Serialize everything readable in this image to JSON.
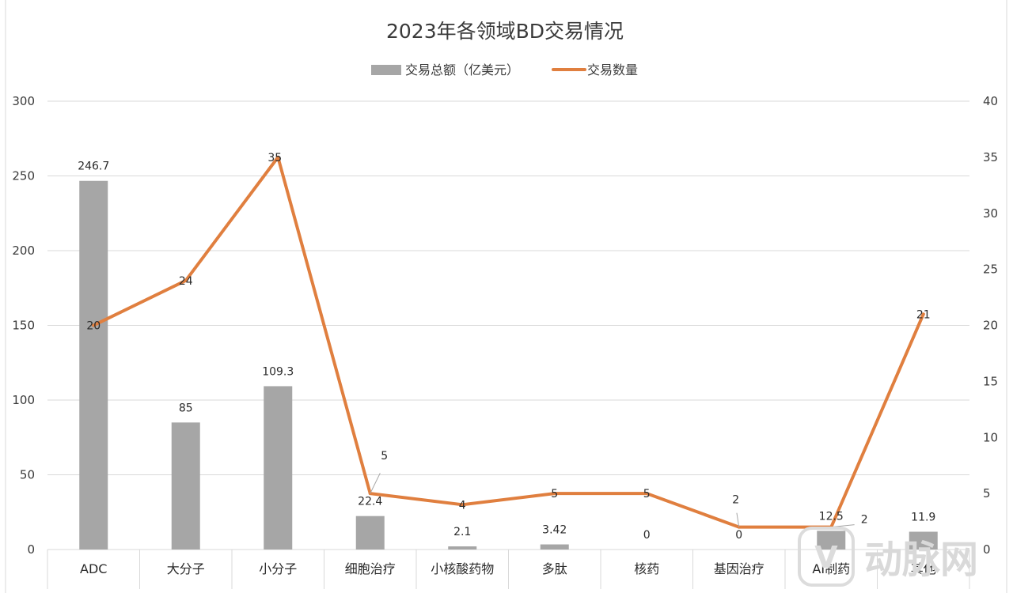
{
  "chart_data": {
    "type": "bar",
    "title": "2023年各领域BD交易情况",
    "categories": [
      "ADC",
      "大分子",
      "小分子",
      "细胞治疗",
      "小核酸药物",
      "多肽",
      "核药",
      "基因治疗",
      "AI制药",
      "其他"
    ],
    "series": [
      {
        "name": "交易总额（亿美元）",
        "type": "bar",
        "axis": "left",
        "values": [
          246.7,
          85,
          109.3,
          22.4,
          2.1,
          3.42,
          0,
          0,
          12.5,
          11.9
        ],
        "labels": [
          "246.7",
          "85",
          "109.3",
          "22.4",
          "2.1",
          "3.42",
          "0",
          "0",
          "12.5",
          "11.9"
        ],
        "color": "#a6a6a6"
      },
      {
        "name": "交易数量",
        "type": "line",
        "axis": "right",
        "values": [
          20,
          24,
          35,
          5,
          4,
          5,
          5,
          2,
          2,
          21
        ],
        "labels": [
          "20",
          "24",
          "35",
          "5",
          "4",
          "5",
          "5",
          "2",
          "2",
          "21"
        ],
        "color": "#e07f3f"
      }
    ],
    "ylim_left": [
      0,
      300
    ],
    "yticks_left": [
      "0",
      "50",
      "100",
      "150",
      "200",
      "250",
      "300"
    ],
    "ylim_right": [
      0,
      40
    ],
    "yticks_right": [
      "0",
      "5",
      "10",
      "15",
      "20",
      "25",
      "30",
      "35",
      "40"
    ],
    "grid": true,
    "legend_position": "top-center"
  },
  "watermark": {
    "text": "动脉网"
  }
}
